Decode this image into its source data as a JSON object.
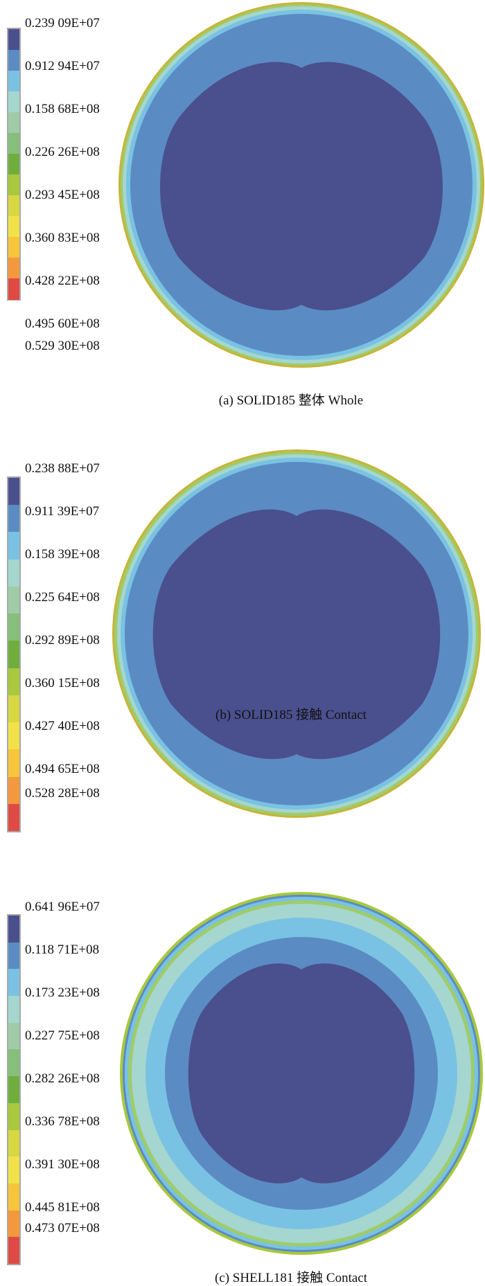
{
  "colors": [
    "#4a4f8e",
    "#5b8bc3",
    "#79c2e3",
    "#a5d6cf",
    "#9fcca6",
    "#86bf7a",
    "#6fae3c",
    "#a8c83e",
    "#d7d743",
    "#f2e24a",
    "#f7c53a",
    "#f3983d",
    "#e04a45"
  ],
  "panels": [
    {
      "caption": "(a) SOLID185 整体 Whole",
      "labels": [
        "0.239 09E+07",
        "0.912 94E+07",
        "0.158 68E+08",
        "0.226 26E+08",
        "0.293 45E+08",
        "0.360 83E+08",
        "0.428 22E+08",
        "0.495 60E+08",
        "0.529 30E+08"
      ]
    },
    {
      "caption": "(b) SOLID185 接触 Contact",
      "labels": [
        "0.238 88E+07",
        "0.911 39E+07",
        "0.158 39E+08",
        "0.225 64E+08",
        "0.292 89E+08",
        "0.360 15E+08",
        "0.427 40E+08",
        "0.494 65E+08",
        "0.528 28E+08"
      ]
    },
    {
      "caption": "(c) SHELL181 接触 Contact",
      "labels": [
        "0.641 96E+07",
        "0.118 71E+08",
        "0.173 23E+08",
        "0.227 75E+08",
        "0.282 26E+08",
        "0.336 78E+08",
        "0.391 30E+08",
        "0.445 81E+08",
        "0.473 07E+08"
      ]
    }
  ]
}
